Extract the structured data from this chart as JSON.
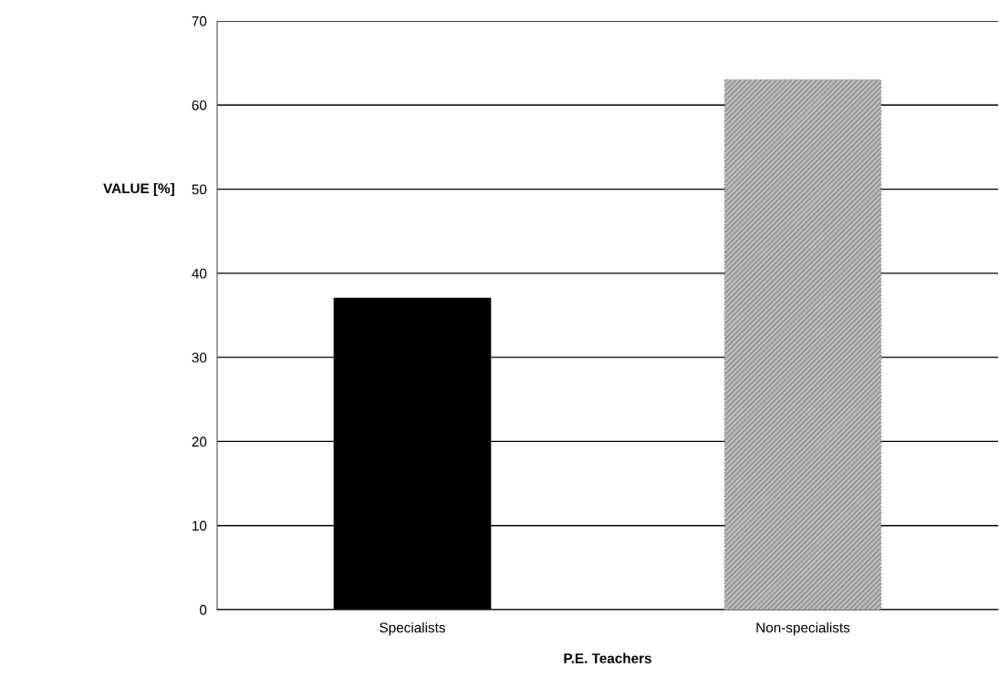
{
  "chart_data": {
    "type": "bar",
    "xlabel": "P.E. Teachers",
    "ylabel": "VALUE [%]",
    "categories": [
      "Specialists",
      "Non-specialists"
    ],
    "series": [
      {
        "colors": [
          "#000000",
          "#8c8c8c"
        ],
        "values": [
          37,
          63
        ]
      }
    ],
    "ylim": [
      0,
      70
    ],
    "yticks": [
      0,
      10,
      20,
      30,
      40,
      50,
      60,
      70
    ],
    "grid": "y",
    "legend": false
  }
}
